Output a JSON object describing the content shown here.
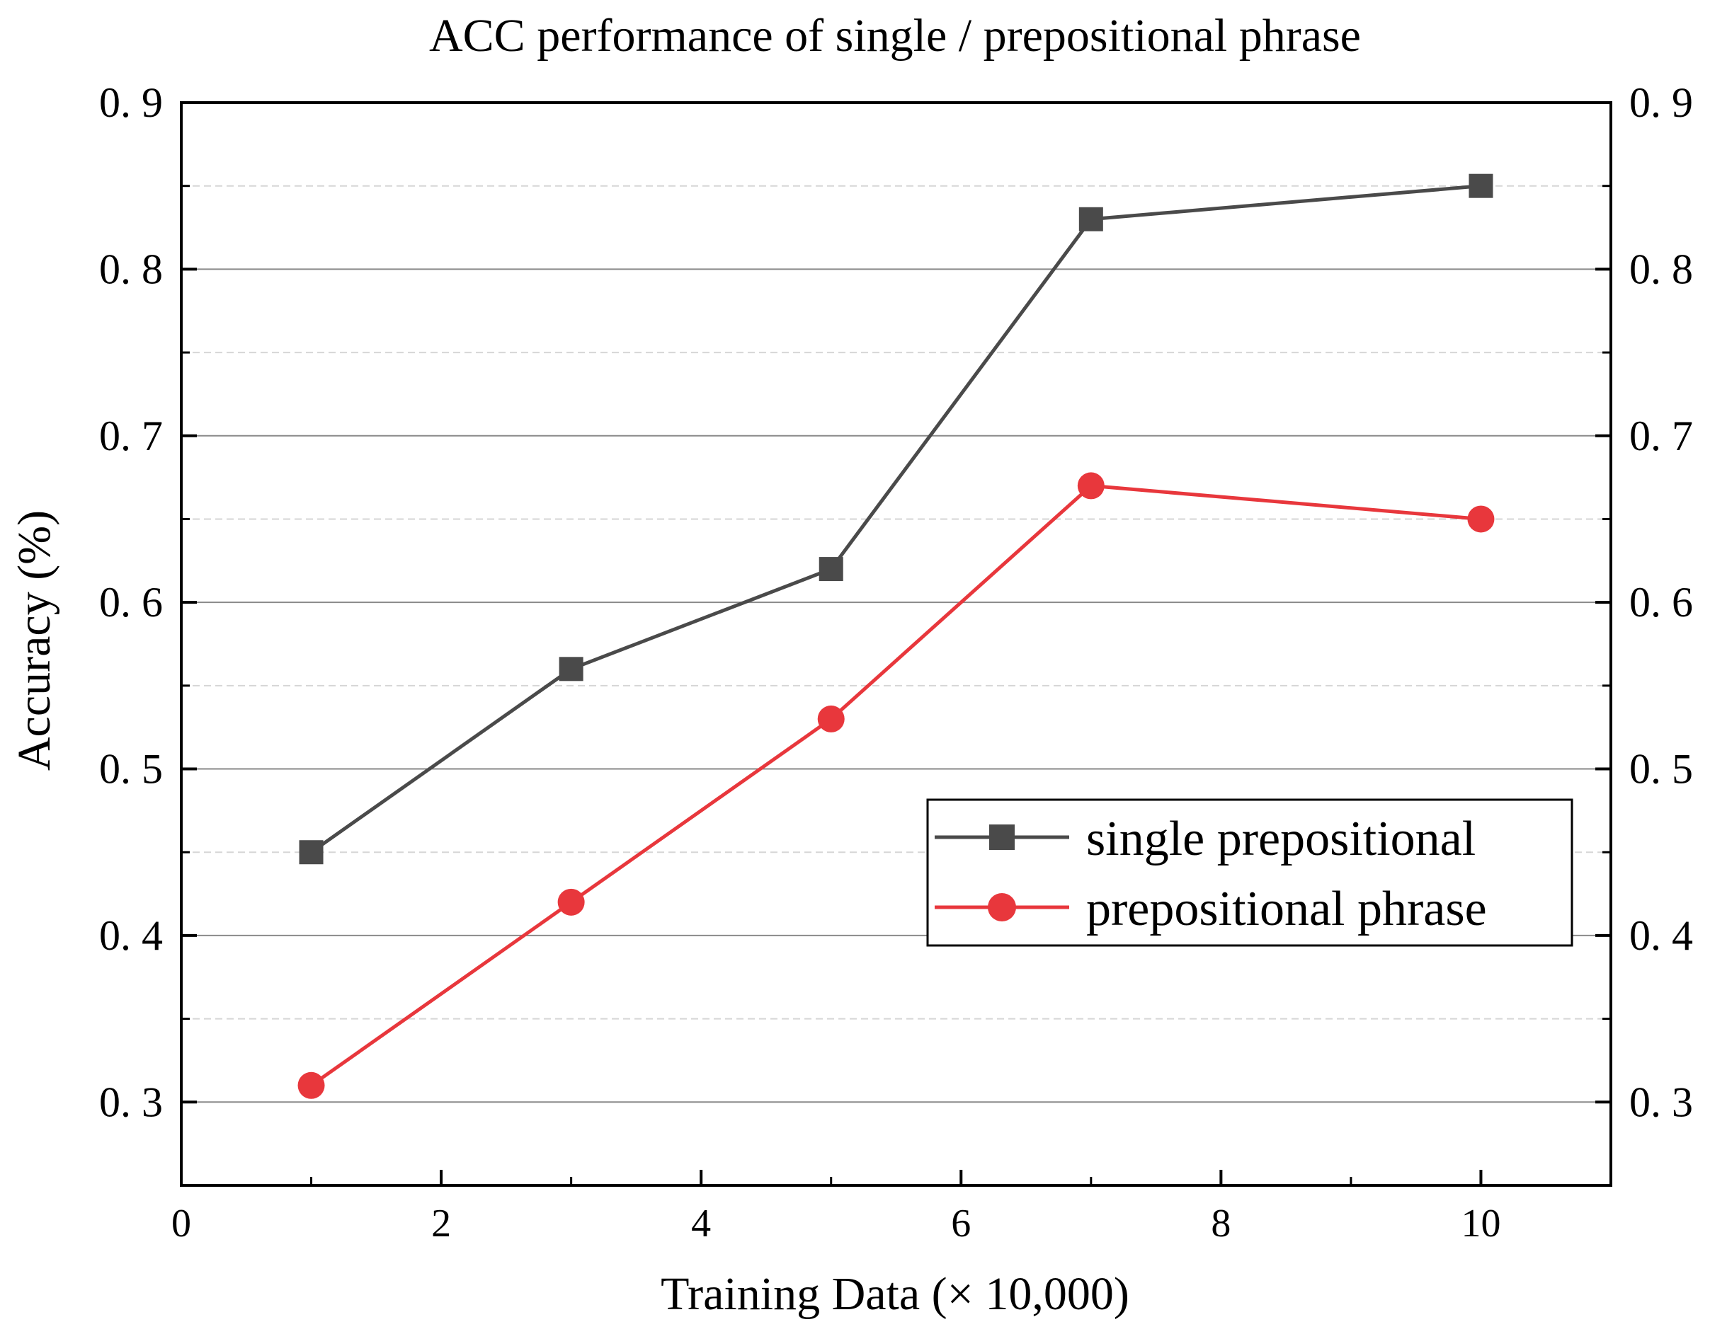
{
  "chart_data": {
    "type": "line",
    "title": "ACC performance of single / prepositional phrase",
    "xlabel": "Training Data (× 10,000)",
    "ylabel": "Accuracy (%)",
    "xlim": [
      0,
      11
    ],
    "ylim": [
      0.25,
      0.9
    ],
    "x_ticks": [
      0,
      2,
      4,
      6,
      8,
      10
    ],
    "x_tick_labels": [
      "0",
      "2",
      "4",
      "6",
      "8",
      "10"
    ],
    "y_ticks": [
      0.3,
      0.4,
      0.5,
      0.6,
      0.7,
      0.8,
      0.9
    ],
    "y_tick_labels": [
      "0. 3",
      "0. 4",
      "0. 5",
      "0. 6",
      "0. 7",
      "0. 8",
      "0. 9"
    ],
    "right_y_tick_labels": [
      "0. 3",
      "0. 4",
      "0. 5",
      "0. 6",
      "0. 7",
      "0. 8",
      "0. 9"
    ],
    "grid": true,
    "legend_position": "center-right",
    "x": [
      1,
      3,
      5,
      7,
      10
    ],
    "series": [
      {
        "name": "single prepositional",
        "values": [
          0.45,
          0.56,
          0.62,
          0.83,
          0.85
        ],
        "color": "#4a4a4a",
        "marker": "square"
      },
      {
        "name": "prepositional phrase",
        "values": [
          0.31,
          0.42,
          0.53,
          0.67,
          0.65
        ],
        "color": "#e8373c",
        "marker": "circle"
      }
    ]
  }
}
